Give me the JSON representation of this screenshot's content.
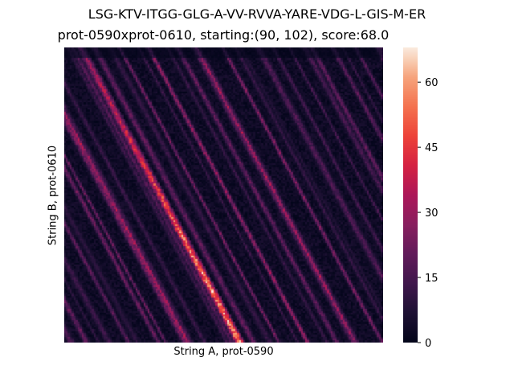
{
  "chart_data": {
    "type": "heatmap",
    "suptitle": "LSG-KTV-ITGG-GLG-A-VV-RVVA-YARE-VDG-L-GIS-M-ER",
    "title": "prot-0590xprot-0610, starting:(90, 102), score:68.0",
    "xlabel": "String A, prot-0590",
    "ylabel": "String B, prot-0610",
    "colormap": "rocket",
    "colorbar": {
      "range": [
        0,
        68
      ],
      "ticks": [
        0,
        15,
        30,
        45,
        60
      ],
      "tick_labels": [
        "0",
        "15",
        "30",
        "45",
        "60"
      ]
    },
    "alignment_start": [
      90,
      102
    ],
    "score": 68.0,
    "grid": false
  }
}
